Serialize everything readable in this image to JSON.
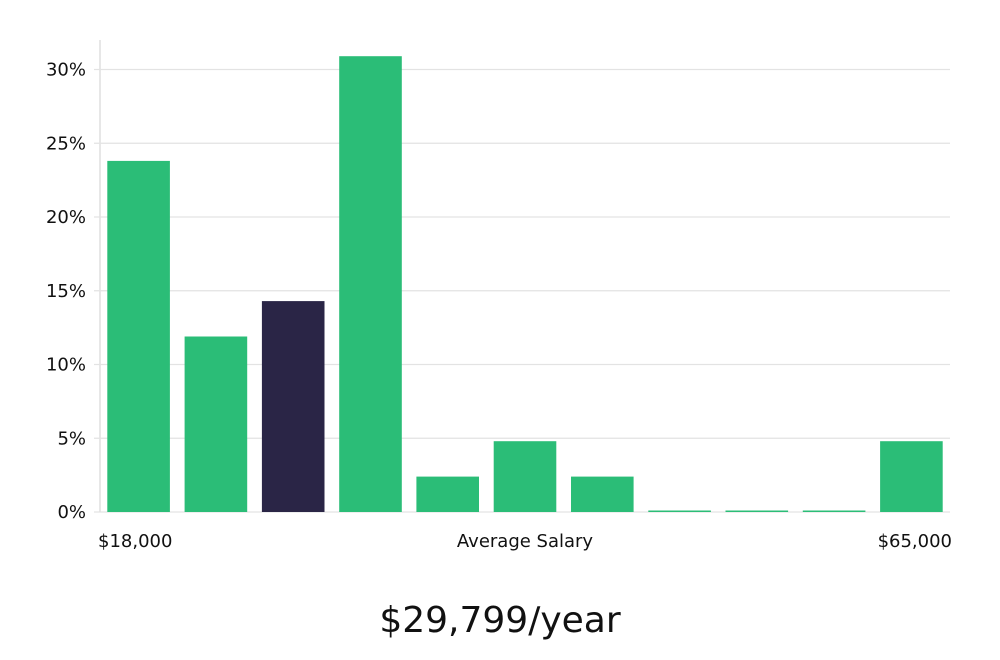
{
  "chart_data": {
    "type": "bar",
    "title": "",
    "xlabel": "Average Salary",
    "ylabel": "",
    "x_min_label": "$18,000",
    "x_max_label": "$65,000",
    "ylim": [
      0,
      32
    ],
    "yticks": [
      0,
      5,
      10,
      15,
      20,
      25,
      30
    ],
    "ytick_labels": [
      "0%",
      "5%",
      "10%",
      "15%",
      "20%",
      "25%",
      "30%"
    ],
    "values": [
      23.8,
      11.9,
      14.3,
      30.9,
      2.4,
      4.8,
      2.4,
      0,
      0,
      0,
      4.8
    ],
    "highlight_index": 2,
    "grid": true
  },
  "colors": {
    "bar": "#2bbd77",
    "highlight": "#2a2546",
    "grid": "#e3e3e3",
    "axis": "#cfcfcf"
  },
  "salary_display": "$29,799/year"
}
